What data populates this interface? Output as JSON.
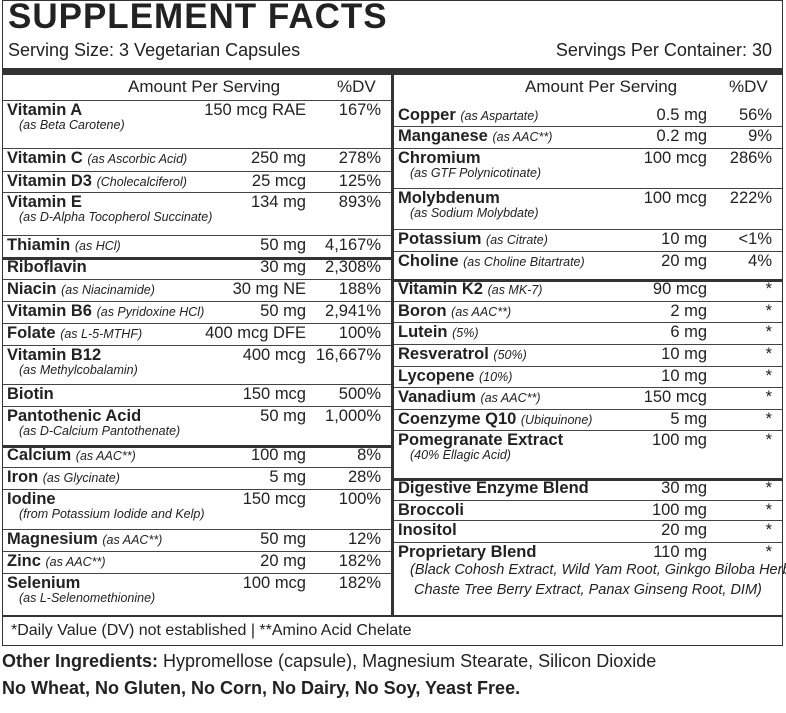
{
  "title": "SUPPLEMENT FACTS",
  "serving_size": "Serving Size: 3 Vegetarian Capsules",
  "servings_per_container": "Servings Per Container: 30",
  "header": {
    "amount": "Amount Per Serving",
    "dv": "%DV"
  },
  "left_rows": [
    {
      "name": "Vitamin A",
      "amount": "150 mcg RAE",
      "dv": "167%",
      "sub": "(as Beta Carotene)"
    },
    {
      "name": "Vitamin C",
      "src": "(as Ascorbic Acid)",
      "amount": "250 mg",
      "dv": "278%"
    },
    {
      "name": "Vitamin D3",
      "src": "(Cholecalciferol)",
      "amount": "25 mcg",
      "dv": "125%"
    },
    {
      "name": "Vitamin E",
      "amount": "134 mg",
      "dv": "893%",
      "sub": "(as D-Alpha Tocopherol Succinate)"
    },
    {
      "name": "Thiamin",
      "src": "(as HCl)",
      "amount": "50 mg",
      "dv": "4,167%"
    },
    {
      "name": "Riboflavin",
      "amount": "30 mg",
      "dv": "2,308%"
    },
    {
      "name": "Niacin",
      "src": "(as Niacinamide)",
      "amount": "30 mg NE",
      "dv": "188%"
    },
    {
      "name": "Vitamin B6",
      "src": "(as Pyridoxine HCl)",
      "amount": "50 mg",
      "dv": "2,941%"
    },
    {
      "name": "Folate",
      "src": "(as L-5-MTHF)",
      "amount": "400 mcg DFE",
      "dv": "100%"
    },
    {
      "name": "Vitamin B12",
      "amount": "400 mcg",
      "dv": "16,667%",
      "sub": "(as Methylcobalamin)"
    },
    {
      "name": "Biotin",
      "amount": "150 mcg",
      "dv": "500%"
    },
    {
      "name": "Pantothenic Acid",
      "amount": "50 mg",
      "dv": "1,000%",
      "sub": "(as D-Calcium Pantothenate)"
    },
    {
      "name": "Calcium",
      "src": "(as AAC**)",
      "amount": "100 mg",
      "dv": "8%"
    },
    {
      "name": "Iron",
      "src": "(as Glycinate)",
      "amount": "5 mg",
      "dv": "28%"
    },
    {
      "name": "Iodine",
      "amount": "150 mcg",
      "dv": "100%",
      "sub": "(from Potassium Iodide and Kelp)"
    },
    {
      "name": "Magnesium",
      "src": "(as AAC**)",
      "amount": "50 mg",
      "dv": "12%"
    },
    {
      "name": "Zinc",
      "src": "(as AAC**)",
      "amount": "20 mg",
      "dv": "182%"
    },
    {
      "name": "Selenium",
      "amount": "100 mcg",
      "dv": "182%",
      "sub": "(as L-Selenomethionine)"
    }
  ],
  "right_rows": [
    {
      "name": "Copper",
      "src": "(as Aspartate)",
      "amount": "0.5 mg",
      "dv": "56%"
    },
    {
      "name": "Manganese",
      "src": "(as AAC**)",
      "amount": "0.2 mg",
      "dv": "9%"
    },
    {
      "name": "Chromium",
      "amount": "100 mcg",
      "dv": "286%",
      "sub": "(as GTF Polynicotinate)"
    },
    {
      "name": "Molybdenum",
      "amount": "100 mcg",
      "dv": "222%",
      "sub": "(as Sodium Molybdate)"
    },
    {
      "name": "Potassium",
      "src": "(as Citrate)",
      "amount": "10 mg",
      "dv": "<1%"
    },
    {
      "name": "Choline",
      "src": "(as Choline Bitartrate)",
      "amount": "20 mg",
      "dv": "4%"
    },
    {
      "name": "Vitamin K2",
      "src": "(as MK-7)",
      "amount": "90 mcg",
      "dv": "*"
    },
    {
      "name": "Boron",
      "src": "(as AAC**)",
      "amount": "2 mg",
      "dv": "*"
    },
    {
      "name": "Lutein",
      "src": "(5%)",
      "amount": "6 mg",
      "dv": "*"
    },
    {
      "name": "Resveratrol",
      "src": "(50%)",
      "amount": "10 mg",
      "dv": "*"
    },
    {
      "name": "Lycopene",
      "src": "(10%)",
      "amount": "10 mg",
      "dv": "*"
    },
    {
      "name": "Vanadium",
      "src": "(as AAC**)",
      "amount": "150 mcg",
      "dv": "*"
    },
    {
      "name": "Coenzyme Q10",
      "src": "(Ubiquinone)",
      "amount": "5 mg",
      "dv": "*"
    },
    {
      "name": "Pomegranate Extract",
      "amount": "100 mg",
      "dv": "*",
      "sub": "(40% Ellagic Acid)"
    },
    {
      "name": "Digestive Enzyme Blend",
      "amount": "30 mg",
      "dv": "*"
    },
    {
      "name": "Broccoli",
      "amount": "100 mg",
      "dv": "*"
    },
    {
      "name": "Inositol",
      "amount": "20 mg",
      "dv": "*"
    },
    {
      "name": "Proprietary Blend",
      "amount": "110 mg",
      "dv": "*",
      "sub": "(Black Cohosh Extract, Wild Yam Root, Ginkgo Biloba Herb,",
      "sub2": "Chaste Tree Berry Extract, Panax Ginseng Root, DIM)"
    }
  ],
  "footnote": "*Daily Value (DV) not established  |  **Amino Acid Chelate",
  "other_label": "Other Ingredients:",
  "other_text": " Hypromellose (capsule), Magnesium Stearate, Silicon Dioxide",
  "free_from": "No Wheat, No Gluten, No Corn, No Dairy, No Soy, Yeast Free."
}
